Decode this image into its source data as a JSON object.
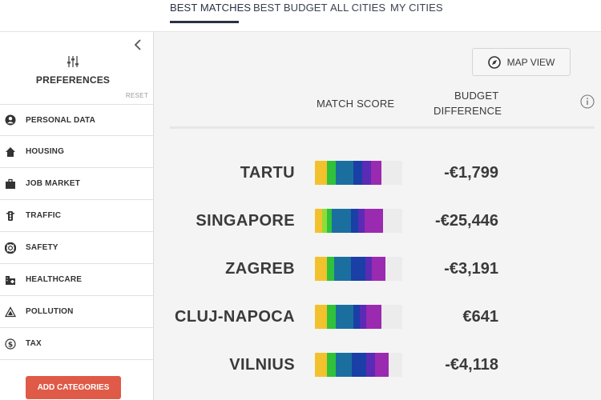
{
  "tabs": [
    {
      "label": "BEST MATCHES",
      "active": true
    },
    {
      "label": "BEST BUDGET",
      "active": false
    },
    {
      "label": "ALL CITIES",
      "active": false
    },
    {
      "label": "MY CITIES",
      "active": false
    }
  ],
  "sidebar": {
    "title": "PREFERENCES",
    "reset_label": "RESET",
    "categories": [
      {
        "label": "PERSONAL DATA",
        "icon": "person-icon"
      },
      {
        "label": "HOUSING",
        "icon": "house-icon"
      },
      {
        "label": "JOB MARKET",
        "icon": "briefcase-icon"
      },
      {
        "label": "TRAFFIC",
        "icon": "traffic-light-icon"
      },
      {
        "label": "SAFETY",
        "icon": "lifebuoy-icon"
      },
      {
        "label": "HEALTHCARE",
        "icon": "hospital-icon"
      },
      {
        "label": "POLLUTION",
        "icon": "pollution-icon"
      },
      {
        "label": "TAX",
        "icon": "dollar-icon"
      }
    ],
    "add_button_label": "ADD CATEGORIES"
  },
  "main": {
    "map_button_label": "MAP VIEW",
    "match_score_header": "MATCH SCORE",
    "budget_header_line1": "BUDGET",
    "budget_header_line2": "DIFFERENCE"
  },
  "colors": {
    "accent_button": "#df5b47",
    "score_segments": [
      "#f2c12e",
      "#8fdc3a",
      "#2fc23a",
      "#1a9e8a",
      "#1b6f9f",
      "#1a3fa6",
      "#5a2bb5",
      "#9a2ab0"
    ]
  },
  "cities": [
    {
      "name": "TARTU",
      "budget_diff": "-€1,799",
      "segments": [
        0.14,
        0,
        0.1,
        0,
        0.2,
        0.1,
        0.1,
        0.12
      ]
    },
    {
      "name": "SINGAPORE",
      "budget_diff": "-€25,446",
      "segments": [
        0.08,
        0.06,
        0.05,
        0,
        0.22,
        0.09,
        0.07,
        0.21
      ]
    },
    {
      "name": "ZAGREB",
      "budget_diff": "-€3,191",
      "segments": [
        0.14,
        0,
        0.08,
        0,
        0.19,
        0.17,
        0.07,
        0.16
      ]
    },
    {
      "name": "CLUJ-NAPOCA",
      "budget_diff": "€641",
      "segments": [
        0.14,
        0,
        0.1,
        0,
        0.2,
        0.07,
        0.08,
        0.17
      ]
    },
    {
      "name": "VILNIUS",
      "budget_diff": "-€4,118",
      "segments": [
        0.14,
        0,
        0.1,
        0,
        0.18,
        0.17,
        0.1,
        0.15
      ]
    }
  ]
}
